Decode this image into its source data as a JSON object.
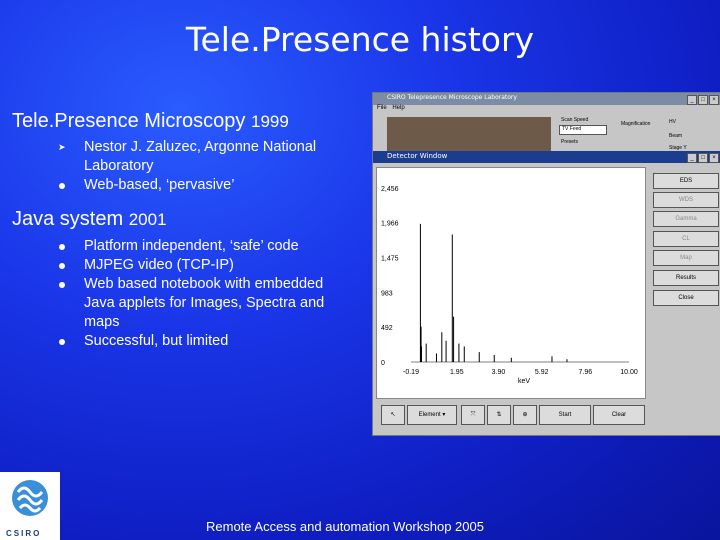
{
  "title": "Tele.Presence history",
  "section1": {
    "heading": "Tele.Presence Microscopy",
    "year": "1999",
    "bullets": [
      "Nestor J. Zaluzec, Argonne National Laboratory",
      "Web-based, ‘pervasive’"
    ]
  },
  "section2": {
    "heading": "Java system",
    "year": "2001",
    "bullets": [
      "Platform independent, ‘safe’ code",
      "MJPEG video (TCP-IP)",
      "Web based notebook with embedded Java applets for Images, Spectra and maps",
      "Successful, but limited"
    ]
  },
  "footer": "Remote Access and automation Workshop 2005",
  "logo_text": "CSIRO",
  "screenshot": {
    "main_title": "CSIRO Telepresence Microscope Laboratory",
    "menu": [
      "File",
      "Help"
    ],
    "scan_speed_label": "Scan Speed",
    "scan_speed_value": "TV Feed",
    "presets_label": "Presets",
    "magnification_label": "Magnification",
    "right_labels": [
      "HV",
      "Beam",
      "Stage Y"
    ],
    "detector_title": "Detector Window",
    "side_buttons": [
      "EDS",
      "WDS",
      "Gamma",
      "CL",
      "Map",
      "Results",
      "Close"
    ],
    "disabled_buttons": [
      "WDS",
      "Gamma",
      "CL",
      "Map"
    ],
    "bottom_element": "Element",
    "bottom_start": "Start",
    "bottom_clear": "Clear"
  },
  "chart_data": {
    "type": "line",
    "xlabel": "keV",
    "yticks": [
      "2,456",
      "1,966",
      "1,475",
      "983",
      "492",
      "0"
    ],
    "ytick_values": [
      2456,
      1966,
      1475,
      983,
      492,
      0
    ],
    "xticks": [
      "-0.19",
      "1.95",
      "3.90",
      "5.92",
      "7.96",
      "10.00"
    ],
    "xtick_values": [
      -0.19,
      1.95,
      3.9,
      5.92,
      7.96,
      10.0
    ],
    "xlim": [
      -0.19,
      10.0
    ],
    "ylim": [
      0,
      2456
    ],
    "series": [
      {
        "x": [
          0.25,
          0.28,
          0.3,
          0.52,
          1.0,
          1.25,
          1.45,
          1.74,
          1.8,
          2.05,
          2.3,
          3.0,
          3.7,
          4.5,
          6.4,
          7.1
        ],
        "y": [
          1950,
          500,
          220,
          260,
          120,
          420,
          300,
          1800,
          640,
          260,
          220,
          140,
          100,
          60,
          80,
          40
        ]
      }
    ]
  }
}
